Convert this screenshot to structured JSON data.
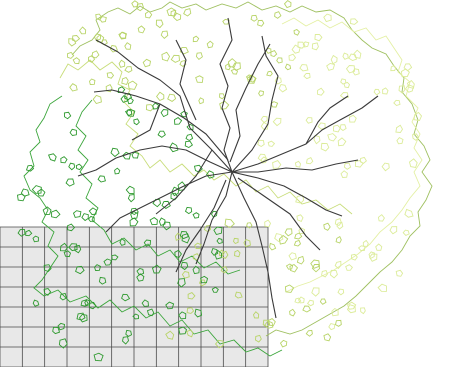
{
  "scene": {
    "background": "#ffffff",
    "grid": {
      "fill": "#e8e8e8",
      "line_color": "#4a4a4a",
      "columns": 12,
      "rows": 7
    },
    "canopy": {
      "light_outline": "#c8dd7a",
      "pale_outline": "#e4f0a4",
      "mid_outline": "#9fc060",
      "dark_outline": "#3aa53a",
      "leaf_light": "#b8d468",
      "leaf_pale": "#dcec9a",
      "leaf_dark": "#2f9a2f"
    },
    "branches": {
      "color": "#3a3a3a"
    }
  }
}
